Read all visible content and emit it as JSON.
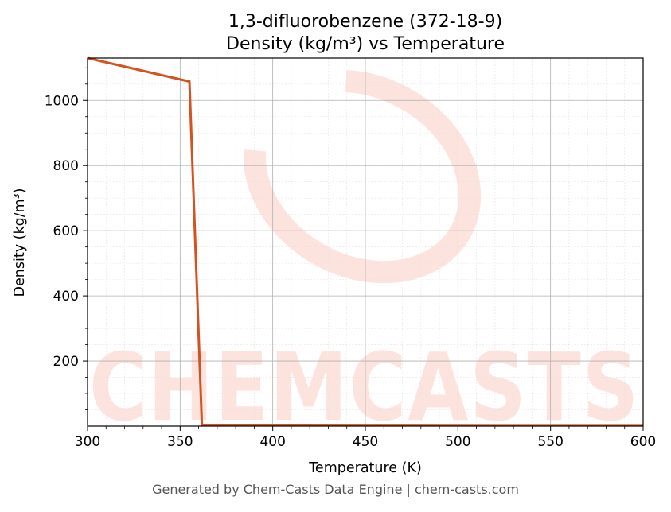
{
  "chart_data": {
    "type": "line",
    "title": "1,3-difluorobenzene (372-18-9)",
    "subtitle": "Density (kg/m³) vs Temperature",
    "xlabel": "Temperature (K)",
    "ylabel": "Density (kg/m³)",
    "xlim": [
      300,
      600
    ],
    "ylim": [
      0,
      1130
    ],
    "xticks": [
      300,
      350,
      400,
      450,
      500,
      550,
      600
    ],
    "yticks": [
      200,
      400,
      600,
      800,
      1000
    ],
    "grid": true,
    "series": [
      {
        "color": "#d4521f",
        "x": [
          300,
          355,
          361.7,
          362,
          400,
          450,
          500,
          550,
          600
        ],
        "y": [
          1130,
          1058,
          8,
          3.9,
          3.7,
          3.3,
          3.0,
          2.8,
          2.6
        ]
      }
    ]
  },
  "watermark": {
    "text": "CHEMCASTS",
    "color": "#fde3de"
  },
  "footer": "Generated by Chem-Casts Data Engine | chem-casts.com"
}
